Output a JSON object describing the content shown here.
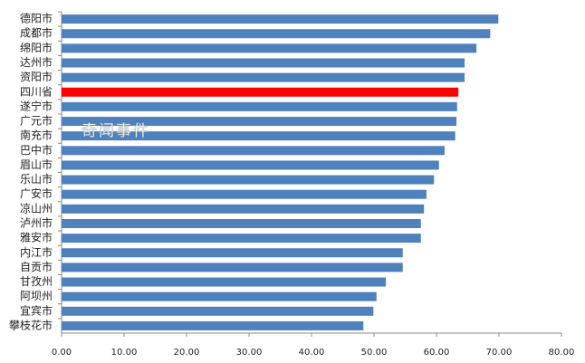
{
  "chart_data": {
    "type": "barh",
    "categories": [
      "德阳市",
      "成都市",
      "绵阳市",
      "达州市",
      "资阳市",
      "四川省",
      "遂宁市",
      "广元市",
      "南充市",
      "巴中市",
      "眉山市",
      "乐山市",
      "广安市",
      "凉山州",
      "泸州市",
      "雅安市",
      "内江市",
      "自贡市",
      "甘孜州",
      "阿坝州",
      "宜宾市",
      "攀枝花市"
    ],
    "values": [
      69.9,
      68.6,
      66.4,
      64.5,
      64.5,
      63.5,
      63.3,
      63.2,
      63.0,
      61.3,
      60.4,
      59.6,
      58.4,
      58.0,
      57.5,
      57.5,
      54.6,
      54.6,
      51.9,
      50.4,
      49.9,
      48.3
    ],
    "colors": [
      "#4f81bd",
      "#4f81bd",
      "#4f81bd",
      "#4f81bd",
      "#4f81bd",
      "#ff0000",
      "#4f81bd",
      "#4f81bd",
      "#4f81bd",
      "#4f81bd",
      "#4f81bd",
      "#4f81bd",
      "#4f81bd",
      "#4f81bd",
      "#4f81bd",
      "#4f81bd",
      "#4f81bd",
      "#4f81bd",
      "#4f81bd",
      "#4f81bd",
      "#4f81bd",
      "#4f81bd"
    ],
    "xlim": [
      0,
      80
    ],
    "xticks": [
      {
        "value": 0,
        "label": "0.00"
      },
      {
        "value": 10,
        "label": "10.00"
      },
      {
        "value": 20,
        "label": "20.00"
      },
      {
        "value": 30,
        "label": "30.00"
      },
      {
        "value": 40,
        "label": "40.00"
      },
      {
        "value": 50,
        "label": "50.00"
      },
      {
        "value": 60,
        "label": "60.00"
      },
      {
        "value": 70,
        "label": "70.00"
      },
      {
        "value": 80,
        "label": "80.00"
      }
    ],
    "grid": false,
    "annotation": "奇闻事件"
  }
}
